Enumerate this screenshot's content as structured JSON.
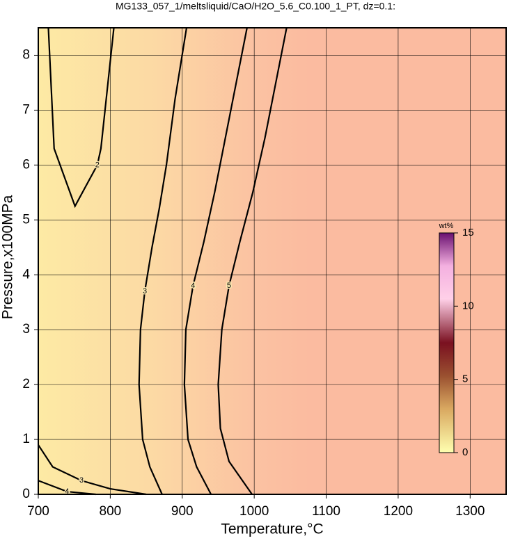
{
  "chart_data": {
    "type": "contour",
    "title": "MG133_057_1/meltsliquid/CaO/H2O_5.6_C0.100_1_PT, dz=0.1:",
    "x_label": "Temperature,°C",
    "y_label": "Pressure,x100MPa",
    "xlim": [
      700,
      1350
    ],
    "xticks": [
      700,
      800,
      900,
      1000,
      1100,
      1200,
      1300
    ],
    "ylim": [
      0,
      8.5
    ],
    "yticks": [
      0,
      1,
      2,
      3,
      4,
      5,
      6,
      7,
      8
    ],
    "grid": true,
    "series": [
      {
        "name": "2",
        "color": "#000000",
        "x": [
          714,
          722,
          751,
          782,
          787,
          805
        ],
        "values": [
          8.5,
          6.3,
          5.25,
          6.0,
          6.3,
          8.5
        ]
      },
      {
        "name": "3",
        "color": "#000000",
        "x": [
          872,
          855,
          845,
          840,
          842,
          848,
          858,
          868,
          878,
          890,
          906
        ],
        "values": [
          0,
          0.5,
          1.0,
          2.0,
          3.0,
          3.7,
          4.5,
          5.2,
          6.0,
          7.2,
          8.5
        ]
      },
      {
        "name": "4",
        "color": "#000000",
        "x": [
          940,
          920,
          908,
          903,
          905,
          915,
          930,
          945,
          960,
          975,
          990
        ],
        "values": [
          0,
          0.5,
          1.0,
          2.0,
          3.0,
          3.8,
          4.6,
          5.5,
          6.5,
          7.5,
          8.5
        ]
      },
      {
        "name": "5",
        "color": "#000000",
        "x": [
          997,
          965,
          953,
          950,
          955,
          965,
          980,
          998,
          1015,
          1030,
          1045
        ],
        "values": [
          0,
          0.6,
          1.2,
          2.0,
          3.0,
          3.8,
          4.6,
          5.5,
          6.5,
          7.5,
          8.5
        ]
      },
      {
        "name": "3",
        "color": "#000000",
        "x": [
          700,
          720,
          760,
          800,
          850
        ],
        "values": [
          0.9,
          0.5,
          0.25,
          0.1,
          0
        ]
      },
      {
        "name": "4",
        "color": "#000000",
        "x": [
          700,
          740,
          780
        ],
        "values": [
          0.25,
          0.05,
          0
        ]
      }
    ],
    "colorbar": {
      "label": "wt%",
      "lim": [
        0,
        15
      ],
      "ticks": [
        0,
        5,
        10,
        15
      ]
    }
  }
}
